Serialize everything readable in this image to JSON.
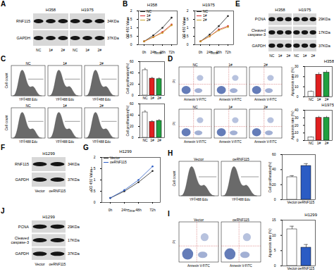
{
  "panel_labels": [
    "A",
    "B",
    "E",
    "C",
    "D",
    "F",
    "G",
    "H",
    "J",
    "I"
  ],
  "chart_data": [
    {
      "type": "line",
      "title": "H358",
      "xlabel": "Time",
      "ylabel": "OD 450 Value",
      "x": [
        "0h",
        "24h",
        "48h",
        "72h"
      ],
      "series": [
        {
          "name": "NC",
          "color": "#222222",
          "values": [
            0.2,
            0.55,
            1.0,
            1.6
          ]
        },
        {
          "name": "1#",
          "color": "#d62728",
          "values": [
            0.2,
            0.45,
            0.75,
            1.2
          ]
        },
        {
          "name": "2#",
          "color": "#c8a02c",
          "values": [
            0.2,
            0.45,
            0.7,
            1.15
          ]
        }
      ],
      "ylim": [
        0,
        2
      ],
      "yticks": [
        0,
        0.5,
        1,
        1.5,
        2
      ],
      "legend": "top-left",
      "marker": "circle"
    },
    {
      "type": "line",
      "title": "H1975",
      "xlabel": "Time",
      "ylabel": "OD 450 Value",
      "x": [
        "0h",
        "24h",
        "48h",
        "72h"
      ],
      "series": [
        {
          "name": "NC",
          "color": "#222222",
          "values": [
            0.2,
            0.6,
            1.1,
            1.7
          ]
        },
        {
          "name": "1#",
          "color": "#d62728",
          "values": [
            0.2,
            0.5,
            0.9,
            1.1
          ]
        },
        {
          "name": "2#",
          "color": "#c8a02c",
          "values": [
            0.2,
            0.5,
            0.85,
            1.05
          ]
        }
      ],
      "ylim": [
        0,
        2
      ],
      "yticks": [
        0,
        0.5,
        1,
        1.5,
        2
      ],
      "legend": "top-left",
      "marker": "circle"
    },
    {
      "type": "line",
      "title": "H1299",
      "xlabel": "Time",
      "ylabel": "OD 450 Value",
      "x": [
        "0h",
        "24h",
        "48h",
        "72h"
      ],
      "series": [
        {
          "name": "Vector",
          "color": "#222222",
          "values": [
            0.2,
            0.5,
            0.9,
            1.4
          ]
        },
        {
          "name": "oeRNF115",
          "color": "#2b5cc4",
          "values": [
            0.2,
            0.55,
            1.0,
            1.6
          ]
        }
      ],
      "ylim": [
        0,
        2
      ],
      "yticks": [
        0,
        0.5,
        1,
        1.5,
        2
      ],
      "legend": "top-left",
      "marker": "circle"
    },
    {
      "type": "bar",
      "ylabel": "Cell proliferation(%)",
      "categories": [
        "NC",
        "1#",
        "2#"
      ],
      "values": [
        45,
        30,
        29
      ],
      "errors": [
        3,
        2,
        2
      ],
      "colors": [
        "#ffffff",
        "#e02020",
        "#20a040"
      ],
      "ylim": [
        0,
        60
      ],
      "yticks": [
        0,
        20,
        40,
        60
      ]
    },
    {
      "type": "bar",
      "ylabel": "Cell proliferation(%)",
      "categories": [
        "NC",
        "1#",
        "2#"
      ],
      "values": [
        45,
        28,
        30
      ],
      "errors": [
        3,
        2,
        2
      ],
      "colors": [
        "#ffffff",
        "#e02020",
        "#20a040"
      ],
      "ylim": [
        0,
        60
      ],
      "yticks": [
        0,
        20,
        40,
        60
      ]
    },
    {
      "type": "bar",
      "title": "H358",
      "ylabel": "Apoptosis rate (%)",
      "categories": [
        "NC",
        "1#",
        "2#"
      ],
      "values": [
        5,
        22,
        24
      ],
      "errors": [
        1,
        2,
        2
      ],
      "colors": [
        "#ffffff",
        "#e02020",
        "#20a040"
      ],
      "ylim": [
        0,
        30
      ],
      "yticks": [
        0,
        10,
        20,
        30
      ]
    },
    {
      "type": "bar",
      "title": "H1975",
      "ylabel": "Apoptosis rate (%)",
      "categories": [
        "NC",
        "1#",
        "2#"
      ],
      "values": [
        4,
        30,
        30
      ],
      "errors": [
        1,
        2,
        2
      ],
      "colors": [
        "#ffffff",
        "#e02020",
        "#20a040"
      ],
      "ylim": [
        0,
        40
      ],
      "yticks": [
        0,
        10,
        20,
        30,
        40
      ]
    },
    {
      "type": "bar",
      "ylabel": "Cell proliferation(%)",
      "categories": [
        "Vector",
        "oeRNF115"
      ],
      "values": [
        30,
        45
      ],
      "errors": [
        2,
        3
      ],
      "colors": [
        "#ffffff",
        "#2b5cc4"
      ],
      "ylim": [
        0,
        60
      ],
      "yticks": [
        0,
        20,
        40,
        60
      ]
    },
    {
      "type": "bar",
      "title": "H1299",
      "ylabel": "Apoptosis rate (%)",
      "categories": [
        "Vector",
        "oeRNF115"
      ],
      "values": [
        12,
        6
      ],
      "errors": [
        1,
        1
      ],
      "colors": [
        "#ffffff",
        "#2b5cc4"
      ],
      "ylim": [
        0,
        15
      ],
      "yticks": [
        0,
        5,
        10,
        15
      ]
    }
  ],
  "blots": [
    {
      "groups": [
        "H358",
        "H1975"
      ],
      "lanes": [
        "NC",
        "1#",
        "2#"
      ],
      "rows": [
        {
          "protein": "RNF115",
          "size": "34KDa"
        },
        {
          "protein": "GAPDH",
          "size": "37KDa"
        }
      ]
    },
    {
      "groups": [
        "H358",
        "H1975"
      ],
      "lanes": [
        "NC",
        "1#",
        "2#"
      ],
      "rows": [
        {
          "protein": "PCNA",
          "size": "29KDa"
        },
        {
          "protein": "Cleaved caspase-3",
          "size": "17KDa"
        },
        {
          "protein": "GAPDH",
          "size": "37KDa"
        }
      ]
    },
    {
      "groups": [
        "H1299"
      ],
      "lanes": [
        "Vector",
        "oeRNF115"
      ],
      "rows": [
        {
          "protein": "RNF115",
          "size": "34KDa"
        },
        {
          "protein": "GAPDH",
          "size": "37KDa"
        }
      ]
    },
    {
      "groups": [
        "H1299"
      ],
      "lanes": [
        "Vector",
        "oeRNF115"
      ],
      "rows": [
        {
          "protein": "PCNA",
          "size": "29KDa"
        },
        {
          "protein": "Cleaved caspase-3",
          "size": "17KDa"
        },
        {
          "protein": "GAPDH",
          "size": "37KDa"
        }
      ]
    }
  ],
  "edu_histograms": [
    {
      "titles": [
        "NC",
        "1#",
        "2#"
      ],
      "xlabel": "YF®488 Edu",
      "ylabel": "Cell count"
    },
    {
      "titles": [
        "NC",
        "1#",
        "2#"
      ],
      "xlabel": "YF®488 Edu",
      "ylabel": "Cell count"
    },
    {
      "titles": [
        "Vector",
        "oeRNF115"
      ],
      "xlabel": "YF®488 Edu",
      "ylabel": "Cell count"
    }
  ],
  "annexin_plots": [
    {
      "titles": [
        "NC",
        "1#",
        "2#"
      ],
      "xlabel": "Annexin V-FITC",
      "ylabel": "PI"
    },
    {
      "titles": [
        "NC",
        "1#",
        "2#"
      ],
      "xlabel": "Annexin V-FITC",
      "ylabel": "PI"
    },
    {
      "titles": [
        "Vector",
        "oeRNF115"
      ],
      "xlabel": "Annexin V-FITC",
      "ylabel": "PI"
    }
  ]
}
